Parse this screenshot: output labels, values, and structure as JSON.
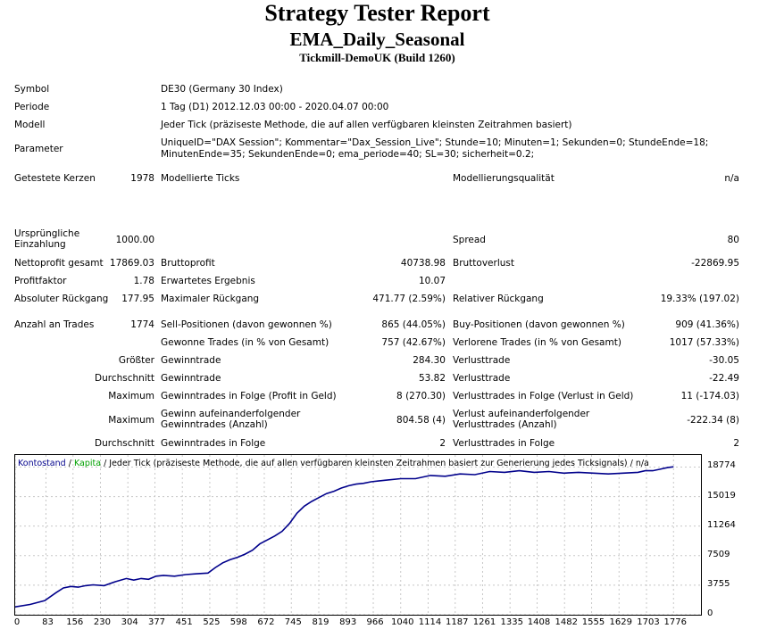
{
  "header": {
    "title": "Strategy Tester Report",
    "ea_name": "EMA_Daily_Seasonal",
    "server": "Tickmill-DemoUK (Build 1260)"
  },
  "info": {
    "symbol_label": "Symbol",
    "symbol_value": "DE30 (Germany 30 Index)",
    "period_label": "Periode",
    "period_value": "1 Tag (D1) 2012.12.03 00:00 - 2020.04.07 00:00",
    "model_label": "Modell",
    "model_value": "Jeder Tick (präziseste Methode, die auf allen verfügbaren kleinsten Zeitrahmen basiert)",
    "params_label": "Parameter",
    "params_line1": "UniqueID=\"DAX Session\"; Kommentar=\"Dax_Session_Live\"; Stunde=10; Minuten=1; Sekunden=0; StundeEnde=18;",
    "params_line2": "MinutenEnde=35; SekundenEnde=0; ema_periode=40; SL=30; sicherheit=0.2;",
    "bars_label": "Getestete Kerzen",
    "bars_value": "1978",
    "ticks_label": "Modellierte Ticks",
    "quality_label": "Modellierungsqualität",
    "quality_value": "n/a"
  },
  "stats": {
    "deposit_label": "Ursprüngliche Einzahlung",
    "deposit_value": "1000.00",
    "spread_label": "Spread",
    "spread_value": "80",
    "net_label": "Nettoprofit gesamt",
    "net_value": "17869.03",
    "gross_profit_label": "Bruttoprofit",
    "gross_profit_value": "40738.98",
    "gross_loss_label": "Bruttoverlust",
    "gross_loss_value": "-22869.95",
    "pf_label": "Profitfaktor",
    "pf_value": "1.78",
    "expected_label": "Erwartetes Ergebnis",
    "expected_value": "10.07",
    "abs_dd_label": "Absoluter Rückgang",
    "abs_dd_value": "177.95",
    "max_dd_label": "Maximaler Rückgang",
    "max_dd_value": "471.77 (2.59%)",
    "rel_dd_label": "Relativer Rückgang",
    "rel_dd_value": "19.33% (197.02)",
    "trades_label": "Anzahl an Trades",
    "trades_value": "1774",
    "short_label": "Sell-Positionen (davon gewonnen %)",
    "short_value": "865 (44.05%)",
    "long_label": "Buy-Positionen (davon gewonnen %)",
    "long_value": "909 (41.36%)",
    "won_label": "Gewonne Trades (in % von Gesamt)",
    "won_value": "757 (42.67%)",
    "lost_label": "Verlorene Trades (in % von Gesamt)",
    "lost_value": "1017 (57.33%)",
    "largest_label": "Größter",
    "largest_win_label": "Gewinntrade",
    "largest_win_value": "284.30",
    "largest_loss_label": "Verlusttrade",
    "largest_loss_value": "-30.05",
    "avg_label": "Durchschnitt",
    "avg_win_label": "Gewinntrade",
    "avg_win_value": "53.82",
    "avg_loss_label": "Verlusttrade",
    "avg_loss_value": "-22.49",
    "max_label": "Maximum",
    "max_cons_win_label": "Gewinntrades in Folge (Profit in Geld)",
    "max_cons_win_value": "8 (270.30)",
    "max_cons_loss_label": "Verlusttrades in Folge (Verlust in Geld)",
    "max_cons_loss_value": "11 (-174.03)",
    "max2_label": "Maximum",
    "max_cons_profit_label": "Gewinn aufeinanderfolgender Gewinntrades (Anzahl)",
    "max_cons_profit_value": "804.58 (4)",
    "max_cons_lossamt_label": "Verlust aufeinanderfolgender Verlusttrades (Anzahl)",
    "max_cons_lossamt_value": "-222.34 (8)",
    "avg2_label": "Durchschnitt",
    "avg_cons_win_label": "Gewinntrades in Folge",
    "avg_cons_win_value": "2",
    "avg_cons_loss_label": "Verlusttrades in Folge",
    "avg_cons_loss_value": "2"
  },
  "chart_data": {
    "type": "line",
    "legend_balance": "Kontostand",
    "legend_sep": " / ",
    "legend_equity": "Kapita",
    "legend_rest": " / Jeder Tick (präziseste Methode, die auf allen verfügbaren kleinsten Zeitrahmen basiert zur Generierung jedes Ticksignals) / n/a",
    "balance_color": "#00008b",
    "equity_color": "#00a000",
    "xlim": [
      0,
      1850
    ],
    "ylim": [
      0,
      20300
    ],
    "y_ticks": [
      "0",
      "3755",
      "7509",
      "11264",
      "15019",
      "18774"
    ],
    "y_tick_values": [
      0,
      3755,
      7509,
      11264,
      15019,
      18774
    ],
    "x_ticks": [
      "0",
      "83",
      "156",
      "230",
      "304",
      "377",
      "451",
      "525",
      "598",
      "672",
      "745",
      "819",
      "893",
      "966",
      "1040",
      "1114",
      "1187",
      "1261",
      "1335",
      "1408",
      "1482",
      "1555",
      "1629",
      "1703",
      "1776"
    ],
    "x_tick_values": [
      0,
      83,
      156,
      230,
      304,
      377,
      451,
      525,
      598,
      672,
      745,
      819,
      893,
      966,
      1040,
      1114,
      1187,
      1261,
      1335,
      1408,
      1482,
      1555,
      1629,
      1703,
      1776
    ],
    "series": [
      {
        "name": "Kontostand",
        "x": [
          0,
          40,
          80,
          110,
          130,
          150,
          170,
          190,
          210,
          240,
          270,
          300,
          320,
          340,
          360,
          380,
          400,
          430,
          460,
          490,
          520,
          540,
          560,
          580,
          600,
          620,
          640,
          660,
          680,
          700,
          720,
          740,
          760,
          780,
          800,
          820,
          840,
          860,
          880,
          900,
          920,
          940,
          960,
          980,
          1000,
          1040,
          1080,
          1120,
          1160,
          1200,
          1240,
          1280,
          1320,
          1360,
          1400,
          1440,
          1480,
          1520,
          1560,
          1600,
          1640,
          1680,
          1700,
          1720,
          1740,
          1760,
          1776
        ],
        "y": [
          1000,
          1300,
          1800,
          2800,
          3400,
          3600,
          3500,
          3700,
          3800,
          3700,
          4200,
          4600,
          4400,
          4600,
          4500,
          4900,
          5000,
          4900,
          5100,
          5200,
          5300,
          6000,
          6600,
          7000,
          7300,
          7700,
          8200,
          9000,
          9500,
          10000,
          10600,
          11600,
          12900,
          13800,
          14400,
          14900,
          15400,
          15700,
          16100,
          16400,
          16600,
          16700,
          16900,
          17000,
          17100,
          17300,
          17300,
          17700,
          17600,
          17900,
          17800,
          18200,
          18100,
          18300,
          18100,
          18200,
          18000,
          18100,
          18000,
          17900,
          18000,
          18100,
          18300,
          18300,
          18500,
          18700,
          18800
        ]
      }
    ]
  }
}
